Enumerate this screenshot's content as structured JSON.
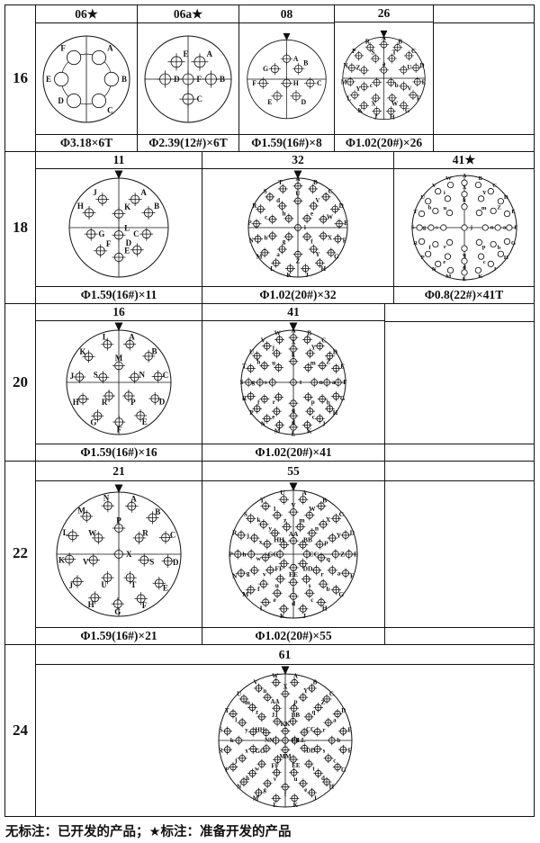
{
  "footer_note": "无标注：已开发的产品；★标注：准备开发的产品",
  "rows": [
    {
      "label": "16",
      "cells": [
        {
          "header": "06★",
          "caption": "Φ3.18×6T",
          "diagram": {
            "d": 96,
            "pr": 0.16,
            "style": "plain",
            "axes": "v",
            "marker": false,
            "arc": 0.58,
            "pins": [
              {
                "l": "A",
                "x": 0.29,
                "y": -0.5,
                "s": "tr"
              },
              {
                "l": "B",
                "x": 0.58,
                "y": 0.0,
                "s": "r"
              },
              {
                "l": "C",
                "x": 0.29,
                "y": 0.5,
                "s": "br"
              },
              {
                "l": "D",
                "x": -0.29,
                "y": 0.5,
                "s": "l"
              },
              {
                "l": "E",
                "x": -0.58,
                "y": 0.0,
                "s": "l"
              },
              {
                "l": "F",
                "x": -0.29,
                "y": -0.5,
                "s": "tl"
              }
            ]
          }
        },
        {
          "header": "06a★",
          "caption": "Φ2.39(12#)×6T",
          "diagram": {
            "d": 96,
            "pr": 0.125,
            "style": "cross",
            "axes": "vh",
            "marker": false,
            "pins": [
              {
                "l": "E",
                "x": -0.27,
                "y": -0.4,
                "s": "tr"
              },
              {
                "l": "A",
                "x": 0.27,
                "y": -0.4,
                "s": "tr"
              },
              {
                "l": "D",
                "x": -0.53,
                "y": 0.0,
                "s": "r"
              },
              {
                "l": "F",
                "x": 0.0,
                "y": 0.0,
                "s": "r"
              },
              {
                "l": "B",
                "x": 0.53,
                "y": 0.0,
                "s": "r"
              },
              {
                "l": "C",
                "x": 0.0,
                "y": 0.46,
                "s": "r"
              }
            ]
          }
        },
        {
          "header": "08",
          "caption": "Φ1.59(16#)×8",
          "diagram": {
            "d": 100,
            "pr": 0.095,
            "style": "cross",
            "axes": "vh",
            "marker": true,
            "pins": [
              {
                "l": "A",
                "x": 0.0,
                "y": -0.52,
                "s": "r"
              },
              {
                "l": "G",
                "x": -0.3,
                "y": -0.26,
                "s": "l"
              },
              {
                "l": "B",
                "x": 0.3,
                "y": -0.26,
                "s": "tr"
              },
              {
                "l": "F",
                "x": -0.6,
                "y": 0.1,
                "s": "l"
              },
              {
                "l": "H",
                "x": 0.0,
                "y": 0.1,
                "s": "r"
              },
              {
                "l": "C",
                "x": 0.6,
                "y": 0.1,
                "s": "r"
              },
              {
                "l": "E",
                "x": -0.24,
                "y": 0.43,
                "s": "bl"
              },
              {
                "l": "D",
                "x": 0.24,
                "y": 0.43,
                "s": "br"
              }
            ]
          }
        },
        {
          "header": "26",
          "caption": "Φ1.02(20#)×26",
          "diagram": {
            "d": 104,
            "pr": 0.075,
            "style": "cross",
            "axes": "vh",
            "marker": true,
            "rings": [
              {
                "r": 0.82,
                "a0": 0,
                "pins": [
                  "A",
                  "B",
                  "C",
                  "D",
                  "E",
                  "F",
                  "G",
                  "H",
                  "J",
                  "K",
                  "L",
                  "M",
                  "N",
                  "P",
                  "R"
                ]
              },
              {
                "r": 0.52,
                "a0": 22,
                "pins": [
                  "T",
                  "U",
                  "V",
                  "W",
                  "X",
                  "Y",
                  "Z",
                  "S"
                ]
              },
              {
                "r": 0.2,
                "a0": 0,
                "pins": [
                  "a",
                  "b",
                  "c"
                ]
              }
            ]
          }
        },
        {
          "header": "",
          "caption": "",
          "diagram": null
        }
      ]
    },
    {
      "label": "18",
      "cells": [
        {
          "header": "11",
          "caption": "Φ1.59(16#)×11",
          "diagram": {
            "d": 110,
            "pr": 0.085,
            "style": "cross",
            "axes": "vh",
            "marker": true,
            "pins": [
              {
                "l": "J",
                "x": -0.33,
                "y": -0.57,
                "s": "tl"
              },
              {
                "l": "A",
                "x": 0.33,
                "y": -0.57,
                "s": "tr"
              },
              {
                "l": "H",
                "x": -0.6,
                "y": -0.3,
                "s": "tl"
              },
              {
                "l": "K",
                "x": 0.0,
                "y": -0.28,
                "s": "tr"
              },
              {
                "l": "B",
                "x": 0.6,
                "y": -0.3,
                "s": "tr"
              },
              {
                "l": "G",
                "x": -0.56,
                "y": 0.13,
                "s": "r"
              },
              {
                "l": "L",
                "x": 0.0,
                "y": 0.15,
                "s": "tr"
              },
              {
                "l": "C",
                "x": 0.56,
                "y": 0.13,
                "s": "l"
              },
              {
                "l": "F",
                "x": -0.37,
                "y": 0.47,
                "s": "tr"
              },
              {
                "l": "D",
                "x": 0.37,
                "y": 0.45,
                "s": "tl"
              },
              {
                "l": "E",
                "x": 0.0,
                "y": 0.6,
                "s": "tr"
              }
            ]
          }
        },
        {
          "header": "32",
          "caption": "Φ1.02(20#)×32",
          "diagram": {
            "d": 110,
            "pr": 0.062,
            "style": "cross",
            "axes": "vh",
            "marker": true,
            "center": "i",
            "rings": [
              {
                "r": 0.84,
                "a0": 0,
                "pins": [
                  "A",
                  "B",
                  "C",
                  "D",
                  "E",
                  "F",
                  "G",
                  "H",
                  "J",
                  "K",
                  "L",
                  "M",
                  "N",
                  "P",
                  "R",
                  "S",
                  "T"
                ]
              },
              {
                "r": 0.54,
                "a0": 0,
                "pins": [
                  "U",
                  "V",
                  "W",
                  "X",
                  "Y",
                  "Z",
                  "a",
                  "b",
                  "c",
                  "d"
                ]
              },
              {
                "r": 0.26,
                "a0": 45,
                "pins": [
                  "e",
                  "f",
                  "g",
                  "h"
                ]
              }
            ]
          }
        },
        {
          "header": "41★",
          "caption": "Φ0.8(22#)×41T",
          "diagram": {
            "d": 116,
            "pr": 0.055,
            "style": "plain",
            "axes": "vh",
            "marker": false,
            "center": "j",
            "rings": [
              {
                "r": 0.86,
                "a0": 0,
                "pins": [
                  "A",
                  "B",
                  "C",
                  "D",
                  "E",
                  "F",
                  "G",
                  "H",
                  "J",
                  "K",
                  "L",
                  "M",
                  "N",
                  "P",
                  "R",
                  "S",
                  "T",
                  "U",
                  "V",
                  "W"
                ]
              },
              {
                "r": 0.64,
                "a0": 0,
                "pins": [
                  "X",
                  "Y",
                  "Z",
                  "a",
                  "b",
                  "c",
                  "d",
                  "e",
                  "f",
                  "g",
                  "h",
                  "i"
                ]
              },
              {
                "r": 0.4,
                "a0": 0,
                "pins": [
                  "k",
                  "m",
                  "n",
                  "p",
                  "q",
                  "r",
                  "s",
                  "u"
                ]
              }
            ]
          }
        }
      ]
    },
    {
      "label": "20",
      "cells": [
        {
          "header": "16",
          "caption": "Φ1.59(16#)×16",
          "diagram": {
            "d": 116,
            "pr": 0.075,
            "style": "cross",
            "axes": "vh",
            "marker": true,
            "rings": [
              {
                "r": 0.76,
                "a0": 16,
                "pins": [
                  "A",
                  "B",
                  "C",
                  "D",
                  "E",
                  "F",
                  "G",
                  "H",
                  "J",
                  "K",
                  "L"
                ]
              },
              {
                "r": 0.32,
                "a0": 0,
                "pins": [
                  "M",
                  "N",
                  "P",
                  "R",
                  "S"
                ]
              }
            ]
          }
        },
        {
          "header": "41",
          "caption": "Φ1.02(20#)×41",
          "diagram": {
            "d": 116,
            "pr": 0.058,
            "style": "cross",
            "axes": "vh",
            "marker": true,
            "center": "t",
            "rings": [
              {
                "r": 0.86,
                "a0": 0,
                "pins": [
                  "A",
                  "B",
                  "C",
                  "D",
                  "E",
                  "F",
                  "G",
                  "H",
                  "J",
                  "K",
                  "L",
                  "M",
                  "N",
                  "P",
                  "R",
                  "S",
                  "T",
                  "U",
                  "V",
                  "W"
                ]
              },
              {
                "r": 0.64,
                "a0": 0,
                "pins": [
                  "X",
                  "Y",
                  "Z",
                  "a",
                  "b",
                  "c",
                  "d",
                  "e",
                  "f",
                  "g",
                  "h",
                  "j"
                ]
              },
              {
                "r": 0.4,
                "a0": 0,
                "pins": [
                  "k",
                  "m",
                  "n",
                  "p",
                  "q",
                  "r",
                  "s",
                  "u"
                ]
              }
            ]
          }
        },
        {
          "header": "",
          "caption": "",
          "diagram": null
        }
      ]
    },
    {
      "label": "22",
      "cells": [
        {
          "header": "21",
          "caption": "Φ1.59(16#)×21",
          "diagram": {
            "d": 138,
            "pr": 0.065,
            "style": "cross",
            "axes": "vh",
            "marker": true,
            "center": "X",
            "rings": [
              {
                "r": 0.8,
                "a0": 15,
                "pins": [
                  "A",
                  "B",
                  "C",
                  "D",
                  "E",
                  "F",
                  "G",
                  "H",
                  "J",
                  "K",
                  "L",
                  "M",
                  "N"
                ]
              },
              {
                "r": 0.42,
                "a0": 0,
                "pins": [
                  "P",
                  "R",
                  "S",
                  "T",
                  "U",
                  "V",
                  "W"
                ]
              }
            ]
          }
        },
        {
          "header": "55",
          "caption": "Φ1.02(20#)×55",
          "diagram": {
            "d": 142,
            "pr": 0.05,
            "style": "cross",
            "axes": "vh",
            "marker": true,
            "rings": [
              {
                "r": 0.87,
                "a0": 10,
                "pins": [
                  "A",
                  "B",
                  "C",
                  "D",
                  "E",
                  "F",
                  "G",
                  "H",
                  "J",
                  "K",
                  "L",
                  "M",
                  "N",
                  "P",
                  "R",
                  "S",
                  "T",
                  "U"
                ]
              },
              {
                "r": 0.66,
                "a0": 0,
                "pins": [
                  "V",
                  "W",
                  "X",
                  "Y",
                  "Z",
                  "a",
                  "b",
                  "c",
                  "d",
                  "e",
                  "f",
                  "g",
                  "h",
                  "j",
                  "k",
                  "l"
                ]
              },
              {
                "r": 0.44,
                "a0": 14,
                "pins": [
                  "m",
                  "n",
                  "p",
                  "q",
                  "r",
                  "s",
                  "t",
                  "u",
                  "v",
                  "w",
                  "x",
                  "y",
                  "z"
                ]
              },
              {
                "r": 0.21,
                "a0": 0,
                "pins": [
                  "AA",
                  "BB",
                  "CC",
                  "DD",
                  "EE",
                  "FF",
                  "GG",
                  "HH"
                ]
              }
            ]
          }
        },
        {
          "header": "",
          "caption": "",
          "diagram": null
        }
      ]
    },
    {
      "label": "24",
      "cells": [
        {
          "header": "61",
          "caption": "",
          "diagram": {
            "d": 148,
            "pr": 0.045,
            "style": "cross",
            "axes": "vh",
            "marker": true,
            "center": "PP",
            "rings": [
              {
                "r": 0.88,
                "a0": 9,
                "pins": [
                  "A",
                  "B",
                  "C",
                  "D",
                  "E",
                  "F",
                  "G",
                  "H",
                  "J",
                  "K",
                  "L",
                  "M",
                  "N",
                  "P",
                  "R",
                  "S",
                  "T",
                  "U",
                  "V",
                  "W"
                ]
              },
              {
                "r": 0.7,
                "a0": 0,
                "pins": [
                  "X",
                  "Y",
                  "Z",
                  "a",
                  "b",
                  "c",
                  "d",
                  "e",
                  "f",
                  "g",
                  "h",
                  "j",
                  "k",
                  "l",
                  "m",
                  "n"
                ]
              },
              {
                "r": 0.5,
                "a0": 15,
                "pins": [
                  "p",
                  "q",
                  "r",
                  "s",
                  "t",
                  "u",
                  "v",
                  "w",
                  "x",
                  "y",
                  "z",
                  "AA"
                ]
              },
              {
                "r": 0.31,
                "a0": 22,
                "pins": [
                  "BB",
                  "CC",
                  "DD",
                  "EE",
                  "FF",
                  "GG",
                  "HH",
                  "JJ"
                ]
              },
              {
                "r": 0.14,
                "a0": 0,
                "pins": [
                  "KK",
                  "LL",
                  "MM",
                  "NN"
                ]
              }
            ]
          }
        }
      ]
    }
  ]
}
